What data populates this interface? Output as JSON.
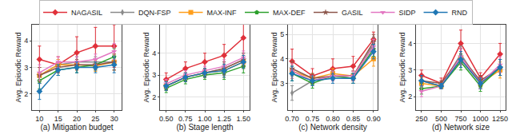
{
  "chart_data": [
    {
      "type": "line",
      "x_label": "(a) Mitigation budget",
      "y_label": "Avg. Episodic Reward",
      "grid": true,
      "x": [
        10,
        15,
        20,
        25,
        30
      ],
      "xlim": [
        8,
        32
      ],
      "xticks": [
        10,
        15,
        20,
        25,
        30
      ],
      "ylim": [
        1.4,
        4.6
      ],
      "yticks": [
        2,
        3,
        4
      ],
      "series": [
        {
          "name": "NAGASIL",
          "color": "#e0303a",
          "marker": "diamond",
          "values": [
            3.3,
            3.1,
            3.55,
            3.8,
            3.8
          ],
          "errors": [
            0.5,
            0.3,
            0.6,
            0.7,
            0.8
          ]
        },
        {
          "name": "DQN-FSP",
          "color": "#8a8a8a",
          "marker": "diamond-tall",
          "values": [
            2.7,
            3.1,
            3.2,
            3.2,
            3.2
          ],
          "errors": [
            0.3,
            0.2,
            0.2,
            0.2,
            0.3
          ]
        },
        {
          "name": "MAX-INF",
          "color": "#ff9e1b",
          "marker": "square",
          "values": [
            2.7,
            3.1,
            3.1,
            3.05,
            3.2
          ],
          "errors": [
            0.3,
            0.2,
            0.2,
            0.2,
            0.3
          ]
        },
        {
          "name": "MAX-DEF",
          "color": "#2ca02c",
          "marker": "pentagon",
          "values": [
            2.5,
            2.9,
            3.0,
            3.1,
            3.4
          ],
          "errors": [
            0.3,
            0.2,
            0.2,
            0.2,
            0.3
          ]
        },
        {
          "name": "GASIL",
          "color": "#8c564b",
          "marker": "star",
          "values": [
            2.7,
            3.0,
            3.1,
            3.1,
            3.2
          ],
          "errors": [
            0.3,
            0.2,
            0.2,
            0.2,
            0.3
          ]
        },
        {
          "name": "SIDP",
          "color": "#e377c2",
          "marker": "triangle-down",
          "values": [
            2.8,
            3.2,
            3.2,
            3.3,
            3.6
          ],
          "errors": [
            0.3,
            0.2,
            0.2,
            0.2,
            0.3
          ]
        },
        {
          "name": "RND",
          "color": "#1f77b4",
          "marker": "diamond",
          "values": [
            2.1,
            2.9,
            3.0,
            3.0,
            3.1
          ],
          "errors": [
            0.3,
            0.2,
            0.2,
            0.2,
            0.3
          ]
        }
      ]
    },
    {
      "type": "line",
      "x_label": "(b) Stage length",
      "y_label": "Avg. Episodic Reward",
      "grid": true,
      "x": [
        0.5,
        0.75,
        1.0,
        1.25,
        1.5
      ],
      "xlim": [
        0.42,
        1.58
      ],
      "xticks": [
        {
          "value": 0.5,
          "label": "0.50"
        },
        {
          "value": 0.75,
          "label": "0.75"
        },
        {
          "value": 1.0,
          "label": "1.00"
        },
        {
          "value": 1.25,
          "label": "1.25"
        },
        {
          "value": 1.5,
          "label": "1.50"
        }
      ],
      "ylim": [
        1.4,
        5.3
      ],
      "yticks": [
        2,
        3,
        4
      ],
      "series": [
        {
          "name": "NAGASIL",
          "color": "#e0303a",
          "marker": "diamond",
          "values": [
            2.8,
            3.3,
            3.6,
            3.9,
            4.7
          ],
          "errors": [
            0.3,
            0.3,
            0.4,
            0.5,
            1.1
          ]
        },
        {
          "name": "DQN-FSP",
          "color": "#8a8a8a",
          "marker": "diamond-tall",
          "values": [
            2.5,
            2.9,
            3.1,
            3.3,
            3.7
          ],
          "errors": [
            0.2,
            0.2,
            0.2,
            0.3,
            0.3
          ]
        },
        {
          "name": "MAX-INF",
          "color": "#ff9e1b",
          "marker": "square",
          "values": [
            2.5,
            2.9,
            3.1,
            3.2,
            3.6
          ],
          "errors": [
            0.2,
            0.2,
            0.2,
            0.3,
            0.3
          ]
        },
        {
          "name": "MAX-DEF",
          "color": "#2ca02c",
          "marker": "pentagon",
          "values": [
            2.4,
            2.8,
            3.0,
            3.1,
            3.4
          ],
          "errors": [
            0.2,
            0.2,
            0.2,
            0.3,
            0.3
          ]
        },
        {
          "name": "GASIL",
          "color": "#8c564b",
          "marker": "star",
          "values": [
            2.5,
            2.9,
            3.1,
            3.3,
            3.7
          ],
          "errors": [
            0.2,
            0.2,
            0.2,
            0.3,
            0.3
          ]
        },
        {
          "name": "SIDP",
          "color": "#e377c2",
          "marker": "triangle-down",
          "values": [
            2.6,
            3.0,
            3.2,
            3.4,
            3.8
          ],
          "errors": [
            0.2,
            0.2,
            0.2,
            0.3,
            0.3
          ]
        },
        {
          "name": "RND",
          "color": "#1f77b4",
          "marker": "diamond",
          "values": [
            2.5,
            2.9,
            3.1,
            3.2,
            3.6
          ],
          "errors": [
            0.2,
            0.2,
            0.2,
            0.3,
            0.3
          ]
        }
      ]
    },
    {
      "type": "line",
      "x_label": "(c) Network density",
      "y_label": "Avg. Episodic Reward",
      "grid": true,
      "x": [
        0.7,
        0.75,
        0.8,
        0.85,
        0.9
      ],
      "xlim": [
        0.69,
        0.91
      ],
      "xticks": [
        {
          "value": 0.7,
          "label": "0.70"
        },
        {
          "value": 0.75,
          "label": "0.75"
        },
        {
          "value": 0.8,
          "label": "0.80"
        },
        {
          "value": 0.85,
          "label": "0.85"
        },
        {
          "value": 0.9,
          "label": "0.90"
        }
      ],
      "ylim": [
        1.9,
        5.4
      ],
      "yticks": [
        3,
        4,
        5
      ],
      "series": [
        {
          "name": "NAGASIL",
          "color": "#e0303a",
          "marker": "diamond",
          "values": [
            3.9,
            3.3,
            3.6,
            3.7,
            4.8
          ],
          "errors": [
            0.5,
            0.3,
            0.4,
            0.4,
            0.3
          ]
        },
        {
          "name": "DQN-FSP",
          "color": "#8a8a8a",
          "marker": "diamond-tall",
          "values": [
            2.6,
            3.1,
            3.3,
            3.2,
            4.6
          ],
          "errors": [
            0.3,
            0.2,
            0.2,
            0.2,
            0.3
          ]
        },
        {
          "name": "MAX-INF",
          "color": "#ff9e1b",
          "marker": "square",
          "values": [
            3.5,
            3.2,
            3.4,
            3.3,
            4.0
          ],
          "errors": [
            0.3,
            0.2,
            0.2,
            0.2,
            0.3
          ]
        },
        {
          "name": "MAX-DEF",
          "color": "#2ca02c",
          "marker": "pentagon",
          "values": [
            3.4,
            3.0,
            3.3,
            3.2,
            4.4
          ],
          "errors": [
            0.3,
            0.2,
            0.2,
            0.2,
            0.3
          ]
        },
        {
          "name": "GASIL",
          "color": "#8c564b",
          "marker": "star",
          "values": [
            3.6,
            3.2,
            3.3,
            3.3,
            4.7
          ],
          "errors": [
            0.3,
            0.2,
            0.2,
            0.2,
            0.3
          ]
        },
        {
          "name": "SIDP",
          "color": "#e377c2",
          "marker": "triangle-down",
          "values": [
            3.5,
            3.1,
            3.3,
            3.3,
            4.5
          ],
          "errors": [
            0.3,
            0.2,
            0.2,
            0.2,
            0.3
          ]
        },
        {
          "name": "RND",
          "color": "#1f77b4",
          "marker": "diamond",
          "values": [
            3.4,
            3.1,
            3.2,
            3.2,
            4.3
          ],
          "errors": [
            0.3,
            0.2,
            0.2,
            0.2,
            0.3
          ]
        }
      ]
    },
    {
      "type": "line",
      "x_label": "(d) Network size",
      "y_label": "Avg. Episodic Reward",
      "grid": true,
      "x": [
        250,
        500,
        750,
        1000,
        1250
      ],
      "xlim": [
        180,
        1320
      ],
      "xticks": [
        250,
        500,
        750,
        1000,
        1250
      ],
      "ylim": [
        1.5,
        4.7
      ],
      "yticks": [
        2,
        3,
        4
      ],
      "series": [
        {
          "name": "NAGASIL",
          "color": "#e0303a",
          "marker": "diamond",
          "values": [
            2.8,
            2.5,
            4.0,
            2.7,
            3.6
          ],
          "errors": [
            0.2,
            0.2,
            0.5,
            0.2,
            0.4
          ]
        },
        {
          "name": "DQN-FSP",
          "color": "#8a8a8a",
          "marker": "diamond-tall",
          "values": [
            2.6,
            2.4,
            3.6,
            2.5,
            3.1
          ],
          "errors": [
            0.2,
            0.1,
            0.3,
            0.2,
            0.3
          ]
        },
        {
          "name": "MAX-INF",
          "color": "#ff9e1b",
          "marker": "square",
          "values": [
            2.5,
            2.4,
            3.4,
            2.5,
            3.0
          ],
          "errors": [
            0.2,
            0.1,
            0.3,
            0.2,
            0.3
          ]
        },
        {
          "name": "MAX-DEF",
          "color": "#2ca02c",
          "marker": "pentagon",
          "values": [
            2.3,
            2.4,
            3.3,
            2.4,
            3.1
          ],
          "errors": [
            0.2,
            0.1,
            0.3,
            0.2,
            0.3
          ]
        },
        {
          "name": "GASIL",
          "color": "#8c564b",
          "marker": "star",
          "values": [
            2.6,
            2.5,
            3.5,
            2.6,
            3.1
          ],
          "errors": [
            0.2,
            0.1,
            0.3,
            0.2,
            0.3
          ]
        },
        {
          "name": "SIDP",
          "color": "#e377c2",
          "marker": "triangle-down",
          "values": [
            2.2,
            2.4,
            3.5,
            2.5,
            3.2
          ],
          "errors": [
            0.2,
            0.1,
            0.3,
            0.2,
            0.3
          ]
        },
        {
          "name": "RND",
          "color": "#1f77b4",
          "marker": "diamond",
          "values": [
            2.6,
            2.4,
            3.4,
            2.5,
            3.1
          ],
          "errors": [
            0.2,
            0.1,
            0.3,
            0.2,
            0.3
          ]
        }
      ]
    }
  ]
}
